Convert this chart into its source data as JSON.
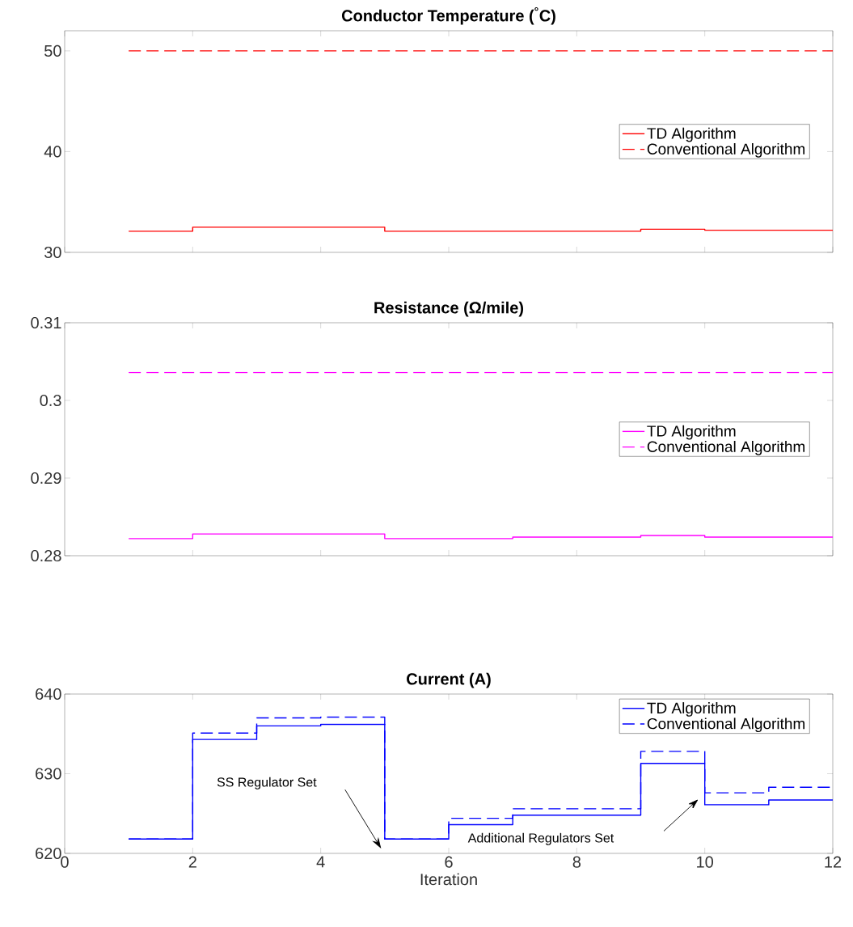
{
  "chart_data": [
    {
      "type": "step",
      "title": "Conductor Temperature ($^{°}$C)",
      "x": [
        1,
        2,
        3,
        4,
        5,
        6,
        7,
        8,
        9,
        10,
        11,
        12
      ],
      "xlim": [
        0,
        12
      ],
      "xticks": [
        0,
        2,
        4,
        6,
        8,
        10,
        12
      ],
      "ylim": [
        30,
        52
      ],
      "yticks": [
        30,
        40,
        50
      ],
      "tick_labels": "y",
      "legend": "right",
      "marker": "none",
      "series": [
        {
          "name": "TD Algorithm",
          "color": "#ff0000",
          "line_style": "solid",
          "values": [
            32.1,
            32.5,
            32.5,
            32.5,
            32.1,
            32.1,
            32.1,
            32.1,
            32.3,
            32.2,
            32.2,
            32.2
          ]
        },
        {
          "name": "Conventional Algorithm",
          "color": "#ff0000",
          "line_style": "dashed",
          "values": [
            50,
            50,
            50,
            50,
            50,
            50,
            50,
            50,
            50,
            50,
            50,
            50
          ]
        }
      ]
    },
    {
      "type": "step",
      "title": "Resistance (Ω/mile)",
      "x": [
        1,
        2,
        3,
        4,
        5,
        6,
        7,
        8,
        9,
        10,
        11,
        12
      ],
      "xlim": [
        0,
        12
      ],
      "xticks": [
        0,
        2,
        4,
        6,
        8,
        10,
        12
      ],
      "ylim": [
        0.28,
        0.31
      ],
      "yticks": [
        0.28,
        0.29,
        0.3,
        0.31
      ],
      "tick_labels": "y",
      "legend": "right",
      "marker": "none",
      "series": [
        {
          "name": "TD Algorithm",
          "color": "#ff00ff",
          "line_style": "solid",
          "values": [
            0.2822,
            0.2828,
            0.2828,
            0.2828,
            0.2822,
            0.2822,
            0.2824,
            0.2824,
            0.2826,
            0.2824,
            0.2824,
            0.2824
          ]
        },
        {
          "name": "Conventional Algorithm",
          "color": "#ff00ff",
          "line_style": "dashed",
          "values": [
            0.3036,
            0.3036,
            0.3036,
            0.3036,
            0.3036,
            0.3036,
            0.3036,
            0.3036,
            0.3036,
            0.3036,
            0.3036,
            0.3036
          ]
        }
      ]
    },
    {
      "type": "step",
      "title": "Current (A)",
      "xlabel": "Iteration",
      "x": [
        1,
        2,
        3,
        4,
        5,
        6,
        7,
        8,
        9,
        10,
        11,
        12
      ],
      "xlim": [
        0,
        12
      ],
      "xticks": [
        0,
        2,
        4,
        6,
        8,
        10,
        12
      ],
      "ylim": [
        620,
        640
      ],
      "yticks": [
        620,
        630,
        640
      ],
      "legend": "top right",
      "marker": "none",
      "series": [
        {
          "name": "TD Algorithm",
          "color": "#0000ff",
          "line_style": "solid",
          "values": [
            621.8,
            634.3,
            636.0,
            636.2,
            621.8,
            623.6,
            624.8,
            624.8,
            631.3,
            626.1,
            626.7,
            626.7
          ]
        },
        {
          "name": "Conventional Algorithm",
          "color": "#0000ff",
          "line_style": "dashed",
          "values": [
            621.8,
            635.1,
            637.0,
            637.1,
            621.8,
            624.4,
            625.6,
            625.6,
            632.8,
            627.6,
            628.3,
            628.3
          ]
        }
      ],
      "annotations": [
        "SS Regulator Set",
        "Additional Regulators Set"
      ]
    }
  ]
}
